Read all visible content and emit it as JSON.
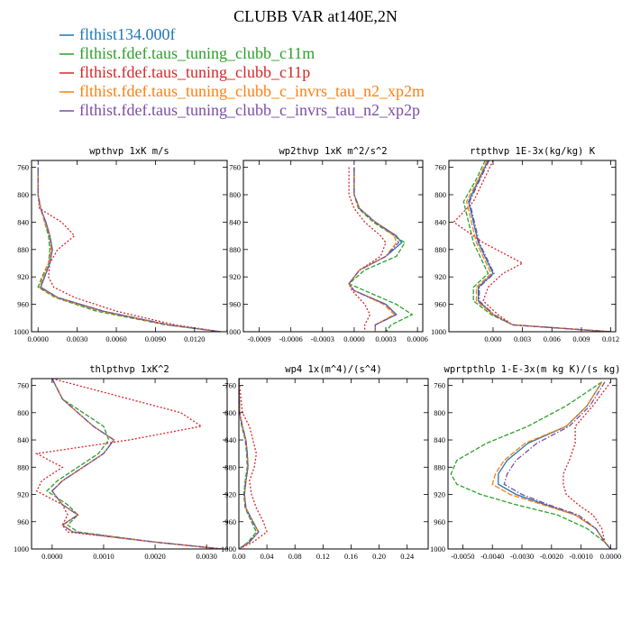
{
  "figure": {
    "title": "CLUBB VAR at140E,2N"
  },
  "legend": [
    {
      "label": "flthist134.000f",
      "color": "#1f77b4"
    },
    {
      "label": "flthist.fdef.taus_tuning_clubb_c11m",
      "color": "#2ca02c"
    },
    {
      "label": "flthist.fdef.taus_tuning_clubb_c11p",
      "color": "#d62728"
    },
    {
      "label": "flthist.fdef.taus_tuning_clubb_c_invrs_tau_n2_xp2m",
      "color": "#ff7f0e"
    },
    {
      "label": "flthist.fdef.taus_tuning_clubb_c_invrs_tau_n2_xp2p",
      "color": "#7b4ea3"
    }
  ],
  "chart_data": [
    {
      "type": "line",
      "title": "wpthvp  1xK m/s",
      "xlim": [
        -0.0005,
        0.0145
      ],
      "ylim": [
        750,
        1000
      ],
      "y_inverted": true,
      "x_ticks": [
        "0.0000",
        "0.0030",
        "0.0060",
        "0.0090",
        "0.0120"
      ],
      "x_tick_values": [
        0.0,
        0.003,
        0.006,
        0.009,
        0.012
      ],
      "y_ticks": [
        "760",
        "800",
        "840",
        "880",
        "920",
        "960",
        "1000"
      ],
      "y": [
        760,
        800,
        820,
        840,
        860,
        880,
        900,
        920,
        935,
        950,
        970,
        990,
        1000
      ],
      "series": [
        {
          "values": [
            0.0,
            0.0,
            0.0002,
            0.0006,
            0.0009,
            0.0011,
            0.0009,
            0.0005,
            0.0002,
            0.0015,
            0.005,
            0.01,
            0.014
          ]
        },
        {
          "values": [
            0.0,
            0.0,
            0.0002,
            0.0005,
            0.0008,
            0.0009,
            0.0008,
            0.0003,
            0.0,
            0.0013,
            0.0045,
            0.0098,
            0.014
          ]
        },
        {
          "values": [
            0.0,
            0.0,
            0.0001,
            0.0018,
            0.0028,
            0.0015,
            0.0009,
            0.0008,
            0.0012,
            0.0028,
            0.006,
            0.0105,
            0.014
          ]
        },
        {
          "values": [
            0.0,
            0.0,
            0.0002,
            0.0005,
            0.0009,
            0.001,
            0.0008,
            0.0004,
            0.0001,
            0.0014,
            0.0048,
            0.01,
            0.014
          ]
        },
        {
          "values": [
            0.0,
            0.0,
            0.0002,
            0.0006,
            0.0009,
            0.0011,
            0.0009,
            0.0005,
            0.0002,
            0.0015,
            0.005,
            0.01,
            0.014
          ]
        }
      ]
    },
    {
      "type": "line",
      "title": "wp2thvp  1xK m^2/s^2",
      "xlim": [
        -0.00105,
        0.00065
      ],
      "ylim": [
        750,
        1000
      ],
      "y_inverted": true,
      "x_ticks": [
        "-0.0009",
        "-0.0006",
        "-0.0003",
        "0.0000",
        "0.0003",
        "0.0006"
      ],
      "x_tick_values": [
        -0.0009,
        -0.0006,
        -0.0003,
        0.0,
        0.0003,
        0.0006
      ],
      "y_ticks": [
        "760",
        "800",
        "840",
        "880",
        "920",
        "960",
        "1000"
      ],
      "y": [
        760,
        800,
        820,
        840,
        860,
        870,
        890,
        910,
        930,
        940,
        960,
        975,
        990,
        1000
      ],
      "series": [
        {
          "values": [
            0.0,
            0.0,
            5e-05,
            0.0002,
            0.0004,
            0.00045,
            0.0003,
            5e-05,
            -5e-05,
            0.0,
            0.0003,
            0.0004,
            0.0002,
            0.0002
          ]
        },
        {
          "values": [
            0.0,
            0.0,
            4e-05,
            0.00018,
            0.00038,
            0.00048,
            0.0004,
            0.0001,
            -5e-05,
            0.0001,
            0.0004,
            0.00055,
            0.00035,
            0.0003
          ]
        },
        {
          "values": [
            -5e-05,
            -5e-05,
            0.0,
            0.0001,
            0.00025,
            0.0003,
            0.00025,
            5e-05,
            -5e-05,
            -2e-05,
            0.0001,
            0.00015,
            0.0001,
            0.0001
          ]
        },
        {
          "values": [
            0.0,
            0.0,
            5e-05,
            0.0002,
            0.00038,
            0.0004,
            0.0003,
            5e-05,
            -5e-05,
            0.0,
            0.00028,
            0.00038,
            0.0002,
            0.0002
          ]
        },
        {
          "values": [
            0.0,
            0.0,
            5e-05,
            0.0002,
            0.0004,
            0.00042,
            0.0003,
            5e-05,
            -5e-05,
            0.0,
            0.0003,
            0.0004,
            0.0002,
            0.0002
          ]
        }
      ]
    },
    {
      "type": "line",
      "title": "rtpthvp  1E-3x(kg/kg) K",
      "xlim": [
        -0.0045,
        0.0125
      ],
      "ylim": [
        750,
        1000
      ],
      "y_inverted": true,
      "x_ticks": [
        "0.000",
        "0.003",
        "0.006",
        "0.009",
        "0.012"
      ],
      "x_tick_values": [
        0.0,
        0.003,
        0.006,
        0.009,
        0.012
      ],
      "y_ticks": [
        "760",
        "800",
        "840",
        "880",
        "920",
        "960",
        "1000"
      ],
      "y": [
        750,
        780,
        810,
        840,
        870,
        900,
        915,
        935,
        955,
        975,
        990,
        1000
      ],
      "series": [
        {
          "values": [
            -0.0005,
            -0.0015,
            -0.0025,
            -0.002,
            -0.0015,
            -0.0005,
            0.0,
            -0.0015,
            -0.0015,
            0.0,
            0.002,
            0.012
          ]
        },
        {
          "values": [
            -0.0008,
            -0.0018,
            -0.003,
            -0.0025,
            -0.002,
            -0.001,
            -0.0005,
            -0.002,
            -0.002,
            -0.0002,
            0.002,
            0.012
          ]
        },
        {
          "values": [
            0.0,
            -0.001,
            -0.002,
            -0.004,
            -0.001,
            0.003,
            0.001,
            -0.0005,
            -0.001,
            0.0005,
            0.002,
            0.012
          ]
        },
        {
          "values": [
            -0.0006,
            -0.0016,
            -0.0027,
            -0.0022,
            -0.0017,
            -0.0007,
            -0.0002,
            -0.0017,
            -0.0017,
            0.0,
            0.002,
            0.012
          ]
        },
        {
          "values": [
            -0.0004,
            -0.0014,
            -0.0024,
            -0.0019,
            -0.0014,
            -0.0004,
            0.0001,
            -0.0014,
            -0.0014,
            0.0001,
            0.002,
            0.012
          ]
        }
      ]
    },
    {
      "type": "line",
      "title": "thlpthvp  1xK^2",
      "xlim": [
        -0.0004,
        0.0034
      ],
      "ylim": [
        750,
        1000
      ],
      "y_inverted": true,
      "x_ticks": [
        "0.0000",
        "0.0010",
        "0.0020",
        "0.0030"
      ],
      "x_tick_values": [
        0.0,
        0.001,
        0.002,
        0.003
      ],
      "y_ticks": [
        "760",
        "800",
        "840",
        "880",
        "920",
        "960",
        "1000"
      ],
      "y": [
        750,
        780,
        800,
        820,
        840,
        860,
        880,
        900,
        915,
        935,
        950,
        965,
        975,
        990,
        1000
      ],
      "series": [
        {
          "values": [
            0.0,
            0.0002,
            0.0005,
            0.0008,
            0.0012,
            0.001,
            0.0006,
            0.0002,
            0.0,
            0.0002,
            0.0005,
            0.0002,
            0.0004,
            0.002,
            0.0033
          ]
        },
        {
          "values": [
            0.0,
            0.0002,
            0.0006,
            0.001,
            0.0011,
            0.0009,
            0.0005,
            0.0001,
            -0.0001,
            0.0003,
            0.0005,
            0.0003,
            0.0005,
            0.002,
            0.0033
          ]
        },
        {
          "values": [
            0.0,
            0.0015,
            0.0025,
            0.0029,
            0.0015,
            -0.0003,
            0.0002,
            -0.0002,
            -0.0003,
            0.0002,
            0.0003,
            0.0002,
            0.0003,
            0.002,
            0.0033
          ]
        },
        {
          "values": [
            0.0,
            0.0002,
            0.0005,
            0.0008,
            0.0012,
            0.001,
            0.0006,
            0.0002,
            0.0,
            0.0002,
            0.0005,
            0.0002,
            0.0004,
            0.002,
            0.0033
          ]
        },
        {
          "values": [
            0.0,
            0.0002,
            0.0005,
            0.0008,
            0.0012,
            0.001,
            0.0006,
            0.0002,
            0.0,
            0.0002,
            0.0005,
            0.0002,
            0.0004,
            0.002,
            0.0033
          ]
        }
      ]
    },
    {
      "type": "line",
      "title": "wp4  1x(m^4)/(s^4)",
      "xlim": [
        0.0,
        0.27
      ],
      "ylim": [
        750,
        1000
      ],
      "y_inverted": true,
      "x_ticks": [
        "0.00",
        "0.04",
        "0.08",
        "0.12",
        "0.16",
        "0.20",
        "0.24"
      ],
      "x_tick_values": [
        0.0,
        0.04,
        0.08,
        0.12,
        0.16,
        0.2,
        0.24
      ],
      "y_ticks": [
        "760",
        "800",
        "840",
        "880",
        "920",
        "960",
        "1000"
      ],
      "y": [
        750,
        800,
        820,
        840,
        860,
        880,
        900,
        920,
        940,
        960,
        975,
        990,
        1000
      ],
      "series": [
        {
          "values": [
            0.0,
            0.001,
            0.005,
            0.01,
            0.012,
            0.013,
            0.01,
            0.008,
            0.01,
            0.02,
            0.028,
            0.015,
            0.0
          ]
        },
        {
          "values": [
            0.0,
            0.001,
            0.004,
            0.009,
            0.011,
            0.012,
            0.009,
            0.007,
            0.009,
            0.018,
            0.025,
            0.013,
            0.0
          ]
        },
        {
          "values": [
            0.0,
            0.005,
            0.015,
            0.02,
            0.025,
            0.022,
            0.015,
            0.018,
            0.025,
            0.035,
            0.04,
            0.02,
            0.0
          ]
        },
        {
          "values": [
            0.0,
            0.001,
            0.005,
            0.01,
            0.012,
            0.013,
            0.01,
            0.008,
            0.01,
            0.02,
            0.028,
            0.015,
            0.0
          ]
        },
        {
          "values": [
            0.0,
            0.001,
            0.005,
            0.01,
            0.012,
            0.013,
            0.01,
            0.008,
            0.01,
            0.02,
            0.028,
            0.015,
            0.0
          ]
        }
      ]
    },
    {
      "type": "line",
      "title": "wprtpthlp  1-E-3x(m kg K)/(s kg)",
      "xlim": [
        -0.0055,
        0.0002
      ],
      "ylim": [
        750,
        1000
      ],
      "y_inverted": true,
      "x_ticks": [
        "-0.0050",
        "-0.0040",
        "-0.0030",
        "-0.0020",
        "-0.0010",
        "0.0000"
      ],
      "x_tick_values": [
        -0.005,
        -0.004,
        -0.003,
        -0.002,
        -0.001,
        0.0
      ],
      "y_ticks": [
        "760",
        "800",
        "840",
        "880",
        "920",
        "960",
        "1000"
      ],
      "y": [
        755,
        790,
        820,
        845,
        870,
        890,
        905,
        920,
        935,
        950,
        970,
        990,
        1000
      ],
      "series": [
        {
          "values": [
            -0.0003,
            -0.0008,
            -0.0015,
            -0.0028,
            -0.0035,
            -0.0038,
            -0.0038,
            -0.0032,
            -0.0022,
            -0.0012,
            -0.0005,
            -0.0002,
            0.0
          ]
        },
        {
          "values": [
            -0.0003,
            -0.0015,
            -0.0028,
            -0.0042,
            -0.0052,
            -0.0054,
            -0.0052,
            -0.0044,
            -0.0032,
            -0.0018,
            -0.0008,
            -0.0002,
            0.0
          ]
        },
        {
          "values": [
            0.0,
            -0.0006,
            -0.0012,
            -0.0012,
            -0.0014,
            -0.0016,
            -0.0016,
            -0.0015,
            -0.0011,
            -0.0006,
            -0.0003,
            -0.0002,
            0.0
          ]
        },
        {
          "values": [
            -0.0003,
            -0.0008,
            -0.0015,
            -0.0029,
            -0.0036,
            -0.0039,
            -0.004,
            -0.0034,
            -0.0023,
            -0.0012,
            -0.0005,
            -0.0002,
            0.0
          ]
        },
        {
          "values": [
            -0.0002,
            -0.0007,
            -0.0014,
            -0.0025,
            -0.0032,
            -0.0035,
            -0.0036,
            -0.003,
            -0.0021,
            -0.0011,
            -0.0005,
            -0.0002,
            0.0
          ]
        }
      ]
    }
  ]
}
